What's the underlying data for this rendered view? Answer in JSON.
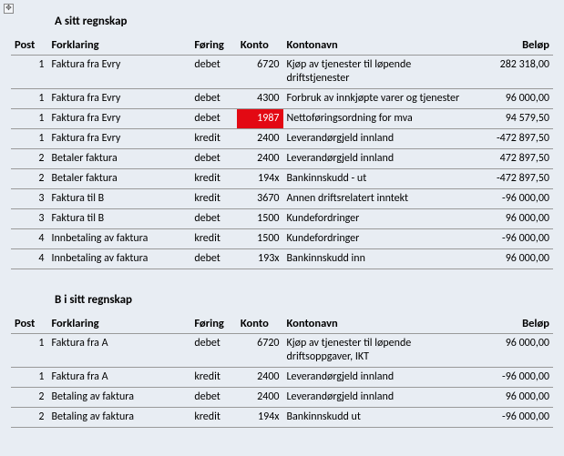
{
  "sectionA": {
    "title": "A sitt regnskap",
    "headers": {
      "post": "Post",
      "forklaring": "Forklaring",
      "foring": "Føring",
      "konto": "Konto",
      "kontonavn": "Kontonavn",
      "belop": "Beløp"
    },
    "rows": [
      {
        "post": "1",
        "forklaring": "Faktura fra Evry",
        "foring": "debet",
        "konto": "6720",
        "kontonavn": "Kjøp av tjenester til løpende driftstjenester",
        "belop": "282 318,00",
        "highlight": false
      },
      {
        "post": "1",
        "forklaring": "Faktura fra Evry",
        "foring": "debet",
        "konto": "4300",
        "kontonavn": "Forbruk av innkjøpte varer og tjenester",
        "belop": "96 000,00",
        "highlight": false
      },
      {
        "post": "1",
        "forklaring": "Faktura fra Evry",
        "foring": "debet",
        "konto": "1987",
        "kontonavn": "Nettoføringsordning for mva",
        "belop": "94 579,50",
        "highlight": true
      },
      {
        "post": "1",
        "forklaring": "Faktura fra Evry",
        "foring": "kredit",
        "konto": "2400",
        "kontonavn": "Leverandørgjeld innland",
        "belop": "-472 897,50",
        "highlight": false
      },
      {
        "post": "2",
        "forklaring": "Betaler faktura",
        "foring": "debet",
        "konto": "2400",
        "kontonavn": "Leverandørgjeld innland",
        "belop": "472 897,50",
        "highlight": false
      },
      {
        "post": "2",
        "forklaring": "Betaler faktura",
        "foring": "kredit",
        "konto": "194x",
        "kontonavn": "Bankinnskudd - ut",
        "belop": "-472 897,50",
        "highlight": false
      },
      {
        "post": "3",
        "forklaring": "Faktura til B",
        "foring": "kredit",
        "konto": "3670",
        "kontonavn": "Annen driftsrelatert inntekt",
        "belop": "-96 000,00",
        "highlight": false
      },
      {
        "post": "3",
        "forklaring": "Faktura til B",
        "foring": "debet",
        "konto": "1500",
        "kontonavn": "Kundefordringer",
        "belop": "96 000,00",
        "highlight": false
      },
      {
        "post": "4",
        "forklaring": "Innbetaling av faktura",
        "foring": "kredit",
        "konto": "1500",
        "kontonavn": "Kundefordringer",
        "belop": "-96 000,00",
        "highlight": false
      },
      {
        "post": "4",
        "forklaring": "Innbetaling av faktura",
        "foring": "debet",
        "konto": "193x",
        "kontonavn": "Bankinnskudd inn",
        "belop": "96 000,00",
        "highlight": false
      }
    ]
  },
  "sectionB": {
    "title": "B i sitt regnskap",
    "headers": {
      "post": "Post",
      "forklaring": "Forklaring",
      "foring": "Føring",
      "konto": "Konto",
      "kontonavn": "Kontonavn",
      "belop": "Beløp"
    },
    "rows": [
      {
        "post": "1",
        "forklaring": "Faktura fra A",
        "foring": "debet",
        "konto": "6720",
        "kontonavn": "Kjøp av tjenester til løpende driftsoppgaver, IKT",
        "belop": "96 000,00",
        "highlight": false
      },
      {
        "post": "1",
        "forklaring": "Faktura fra A",
        "foring": "kredit",
        "konto": "2400",
        "kontonavn": "Leverandørgjeld innland",
        "belop": "-96 000,00",
        "highlight": false
      },
      {
        "post": "2",
        "forklaring": "Betaling av faktura",
        "foring": "debet",
        "konto": "2400",
        "kontonavn": "Leverandørgjeld innland",
        "belop": "96 000,00",
        "highlight": false
      },
      {
        "post": "2",
        "forklaring": "Betaling av faktura",
        "foring": "kredit",
        "konto": "194x",
        "kontonavn": "Bankinnskudd ut",
        "belop": "-96 000,00",
        "highlight": false
      }
    ]
  },
  "style": {
    "background": "#e8edf3",
    "highlight_bg": "#e30913",
    "highlight_fg": "#ffffff",
    "border_color": "#999999",
    "font_family": "Calibri, Arial, sans-serif",
    "font_size_pt": 9
  }
}
